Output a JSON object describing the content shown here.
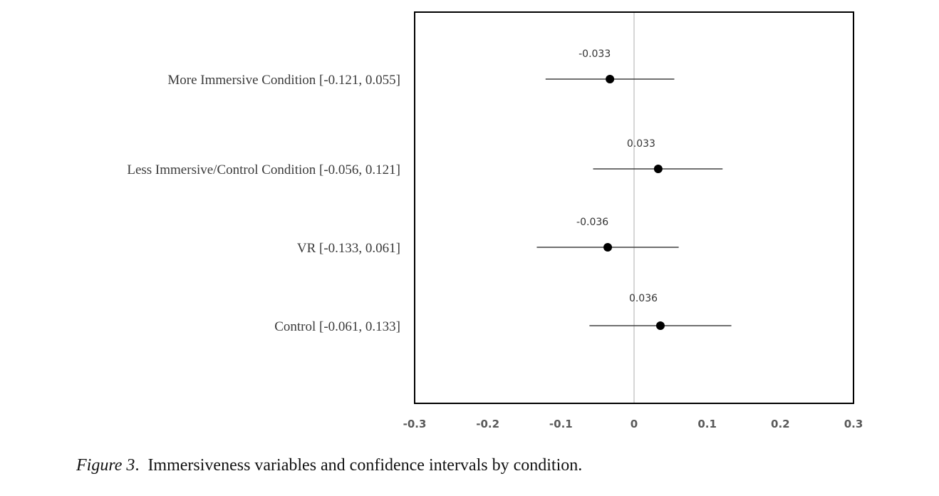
{
  "chart_data": {
    "type": "forest",
    "categories": [
      "More Immersive Condition [-0.121, 0.055]",
      "Less Immersive/Control Condition [-0.056, 0.121]",
      "VR [-0.133, 0.061]",
      "Control [-0.061, 0.133]"
    ],
    "estimates": [
      -0.033,
      0.033,
      -0.036,
      0.036
    ],
    "ci_lower": [
      -0.121,
      -0.056,
      -0.133,
      -0.061
    ],
    "ci_upper": [
      0.055,
      0.121,
      0.061,
      0.133
    ],
    "data_labels": [
      "-0.033",
      "0.033",
      "-0.036",
      "0.036"
    ],
    "xlim": [
      -0.3,
      0.3
    ],
    "x_ticks": [
      "-0.3",
      "-0.2",
      "-0.1",
      "0",
      "0.1",
      "0.2",
      "0.3"
    ],
    "x_tick_values": [
      -0.3,
      -0.2,
      -0.1,
      0,
      0.1,
      0.2,
      0.3
    ],
    "reference_line": 0,
    "colors": {
      "point": "#000000",
      "whisker": "#404040",
      "reference_line": "#c8c8c8",
      "frame": "#000000"
    }
  },
  "caption": {
    "figure_number": "Figure 3",
    "text": "Immersiveness variables and confidence intervals by condition."
  }
}
